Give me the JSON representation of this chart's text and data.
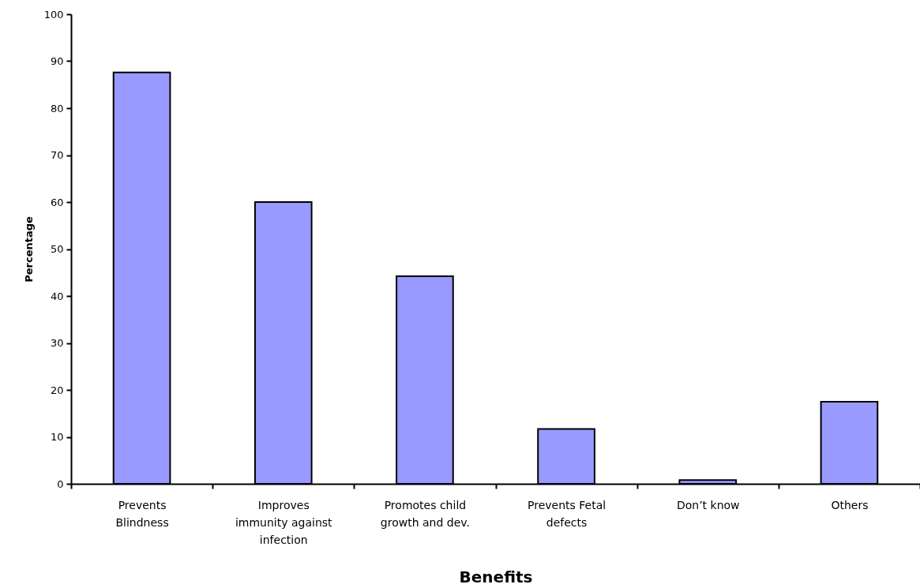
{
  "chart_data": {
    "type": "bar",
    "xlabel": "Benefits",
    "ylabel": "Percentage",
    "categories": [
      "Prevents Blindness",
      "Improves immunity against infection",
      "Promotes child growth and dev.",
      "Prevents Fetal defects",
      "Don’t know",
      "Others"
    ],
    "values": [
      87.6,
      60,
      44.2,
      11.7,
      0.8,
      17.5
    ],
    "color": "#9999ff",
    "ylim": [
      0,
      100
    ],
    "yticks": [
      0,
      10,
      20,
      30,
      40,
      50,
      60,
      70,
      80,
      90,
      100
    ],
    "grid": false
  }
}
